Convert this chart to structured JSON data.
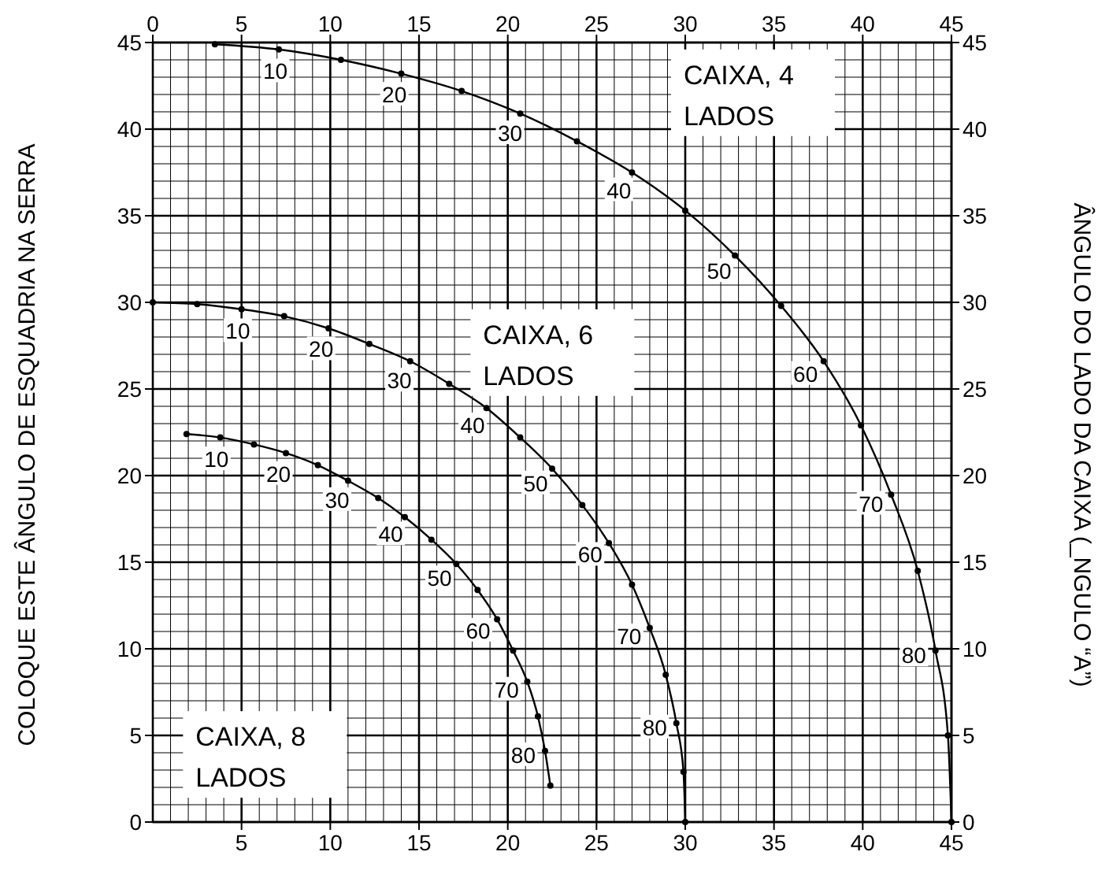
{
  "chart_data": {
    "type": "line",
    "ylabel": "COLOQUE ESTE ÂNGULO DE ESQUADRIA NA SERRA",
    "y2label": "ÂNGULO DO LADO DA CAIXA (_NGULO “A”)",
    "xlim": [
      0,
      45
    ],
    "xticks": [
      5,
      10,
      15,
      20,
      25,
      30,
      35,
      40,
      45
    ],
    "x2lim": [
      0,
      45
    ],
    "x2ticks": [
      0,
      5,
      10,
      15,
      20,
      25,
      30,
      35,
      40,
      45
    ],
    "ylim": [
      0,
      45
    ],
    "yticks": [
      0,
      5,
      10,
      15,
      20,
      25,
      30,
      35,
      40,
      45
    ],
    "y2lim": [
      0,
      45
    ],
    "y2ticks": [
      0,
      5,
      10,
      15,
      20,
      25,
      30,
      35,
      40,
      45
    ],
    "grid": true,
    "marker": "circle",
    "line_style": "solid",
    "series": [
      {
        "color": "#000000",
        "x": [
          3.5,
          7.1,
          10.6,
          14.0,
          17.4,
          20.7,
          23.9,
          27.0,
          30.0,
          32.8,
          35.4,
          37.8,
          39.9,
          41.6,
          43.1,
          44.1,
          44.8,
          45
        ],
        "values": [
          44.9,
          44.6,
          44.0,
          43.2,
          42.2,
          40.9,
          39.3,
          37.5,
          35.3,
          32.7,
          29.8,
          26.6,
          22.9,
          18.9,
          14.5,
          9.9,
          5.0,
          0
        ]
      },
      {
        "color": "#000000",
        "x": [
          0,
          2.5,
          5.0,
          7.4,
          9.9,
          12.2,
          14.5,
          16.7,
          18.8,
          20.7,
          22.5,
          24.2,
          25.7,
          27.0,
          28.0,
          28.9,
          29.5,
          29.9,
          30
        ],
        "values": [
          30,
          29.9,
          29.6,
          29.2,
          28.5,
          27.6,
          26.6,
          25.3,
          23.9,
          22.2,
          20.4,
          18.3,
          16.1,
          13.7,
          11.2,
          8.5,
          5.7,
          2.9,
          0
        ]
      },
      {
        "color": "#000000",
        "x": [
          1.9,
          3.8,
          5.7,
          7.5,
          9.3,
          11.0,
          12.7,
          14.2,
          15.7,
          17.1,
          18.3,
          19.4,
          20.3,
          21.1,
          21.7,
          22.1,
          22.4
        ],
        "values": [
          22.4,
          22.2,
          21.8,
          21.3,
          20.6,
          19.7,
          18.7,
          17.6,
          16.3,
          14.9,
          13.4,
          11.7,
          9.9,
          8.1,
          6.1,
          4.1,
          2.1
        ]
      }
    ],
    "annotations": [
      "CAIXA, 4 LADOS",
      "CAIXA, 6 LADOS",
      "CAIXA, 8 LADOS",
      {
        "text": "10",
        "x": 7.1,
        "y": 44.6
      },
      {
        "text": "20",
        "x": 14.0,
        "y": 43.2
      },
      {
        "text": "30",
        "x": 20.7,
        "y": 40.9
      },
      {
        "text": "40",
        "x": 27.0,
        "y": 37.5
      },
      {
        "text": "50",
        "x": 32.8,
        "y": 32.7
      },
      {
        "text": "60",
        "x": 37.8,
        "y": 26.6
      },
      {
        "text": "70",
        "x": 41.6,
        "y": 18.9
      },
      {
        "text": "80",
        "x": 44.1,
        "y": 9.9
      },
      {
        "text": "10",
        "x": 5.0,
        "y": 29.6
      },
      {
        "text": "20",
        "x": 9.9,
        "y": 28.5
      },
      {
        "text": "30",
        "x": 14.5,
        "y": 26.6
      },
      {
        "text": "40",
        "x": 18.8,
        "y": 23.9
      },
      {
        "text": "50",
        "x": 22.5,
        "y": 20.4
      },
      {
        "text": "60",
        "x": 25.7,
        "y": 16.1
      },
      {
        "text": "70",
        "x": 28.0,
        "y": 11.2
      },
      {
        "text": "80",
        "x": 29.5,
        "y": 5.7
      },
      {
        "text": "10",
        "x": 3.8,
        "y": 22.2
      },
      {
        "text": "20",
        "x": 7.5,
        "y": 21.3
      },
      {
        "text": "30",
        "x": 11.0,
        "y": 19.7
      },
      {
        "text": "40",
        "x": 14.2,
        "y": 17.6
      },
      {
        "text": "50",
        "x": 17.1,
        "y": 14.9
      },
      {
        "text": "60",
        "x": 19.4,
        "y": 11.7
      },
      {
        "text": "70",
        "x": 21.1,
        "y": 8.1
      },
      {
        "text": "80",
        "x": 22.1,
        "y": 4.1
      }
    ]
  }
}
